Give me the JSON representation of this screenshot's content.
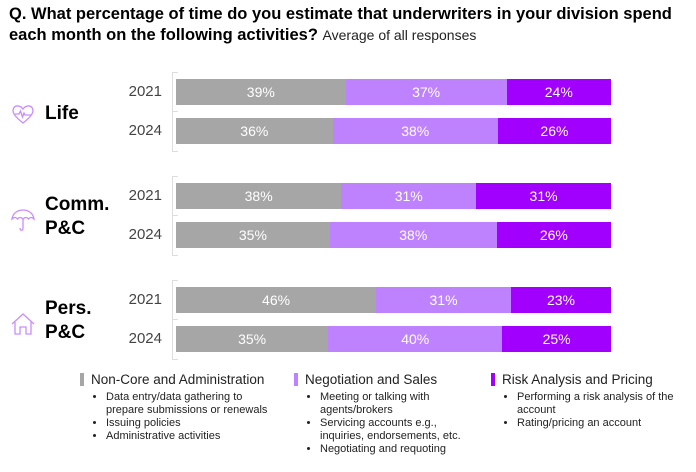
{
  "chart_data": {
    "type": "bar",
    "stacked": true,
    "orientation": "horizontal",
    "title": "Q. What percentage of time do you estimate that underwriters in your division spend each month on the following activities?",
    "subtitle": "Average of all responses",
    "xlim": [
      0,
      100
    ],
    "grid": false,
    "legend_placement": "bottom",
    "colors": [
      "#a6a6a6",
      "#be82ff",
      "#a100ff"
    ],
    "series_names": [
      "Non-Core and Administration",
      "Negotiation and Sales",
      "Risk Analysis and Pricing"
    ],
    "groups": [
      {
        "label": "Life",
        "icon": "heart-pulse-icon",
        "rows": [
          {
            "year": "2021",
            "values": [
              39,
              37,
              24
            ]
          },
          {
            "year": "2024",
            "values": [
              36,
              38,
              26
            ]
          }
        ]
      },
      {
        "label": "Comm.\nP&C",
        "label_lines": [
          "Comm.",
          "P&C"
        ],
        "icon": "umbrella-icon",
        "rows": [
          {
            "year": "2021",
            "values": [
              38,
              31,
              31
            ]
          },
          {
            "year": "2024",
            "values": [
              35,
              38,
              26
            ]
          }
        ]
      },
      {
        "label": "Pers.\nP&C",
        "label_lines": [
          "Pers.",
          "P&C"
        ],
        "icon": "house-icon",
        "rows": [
          {
            "year": "2021",
            "values": [
              46,
              31,
              23
            ]
          },
          {
            "year": "2024",
            "values": [
              35,
              40,
              25
            ]
          }
        ]
      }
    ],
    "legend": [
      {
        "name": "Non-Core and Administration",
        "items": [
          "Data entry/data gathering to prepare submissions or renewals",
          "Issuing policies",
          "Administrative activities"
        ]
      },
      {
        "name": "Negotiation and Sales",
        "items": [
          "Meeting or talking with agents/brokers",
          "Servicing accounts e.g., inquiries, endorsements, etc.",
          "Negotiating and requoting"
        ]
      },
      {
        "name": "Risk Analysis and Pricing",
        "items": [
          "Performing a risk analysis of the account",
          "Rating/pricing an account"
        ]
      }
    ]
  }
}
